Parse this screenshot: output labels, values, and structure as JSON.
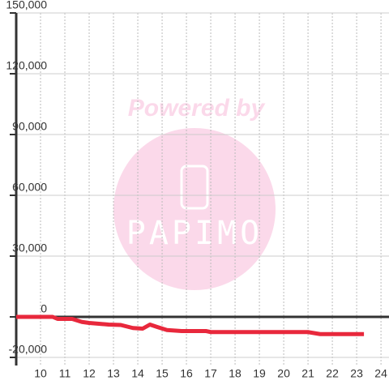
{
  "chart_data": {
    "type": "line",
    "watermark": {
      "text": "Powered by",
      "logo_text": "PAPIMO"
    },
    "x": [
      9,
      10.5,
      10.7,
      11.3,
      11.7,
      12,
      12.5,
      12.8,
      13.3,
      13.8,
      14.2,
      14.5,
      14.8,
      15.2,
      15.8,
      16.8,
      17,
      21,
      21.5,
      23.3
    ],
    "series": [
      {
        "color": "#e8283c",
        "values": [
          0,
          0,
          -1000,
          -1000,
          -2500,
          -3000,
          -3500,
          -3800,
          -4000,
          -5500,
          -5800,
          -3800,
          -5000,
          -6500,
          -7000,
          -7000,
          -7500,
          -7500,
          -8500,
          -8500
        ]
      }
    ],
    "xlim": [
      9,
      24.33
    ],
    "xticks": [
      10,
      11,
      12,
      13,
      14,
      15,
      16,
      17,
      18,
      19,
      20,
      21,
      22,
      23,
      24
    ],
    "ylim": [
      -24000,
      150000
    ],
    "yticks": [
      {
        "value": -20000,
        "label": "-20,000"
      },
      0,
      {
        "value": 30000,
        "label": "30,000"
      },
      {
        "value": 60000,
        "label": "60,000"
      },
      {
        "value": 90000,
        "label": "90,000"
      },
      {
        "value": 120000,
        "label": "120,000"
      },
      {
        "value": 150000,
        "label": "150,000"
      }
    ],
    "grid": true
  }
}
